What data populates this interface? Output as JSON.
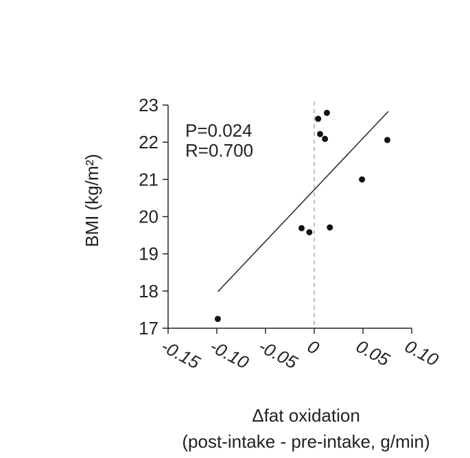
{
  "chart_data": {
    "type": "scatter",
    "x": [
      -0.099,
      -0.013,
      -0.005,
      0.016,
      0.004,
      0.013,
      0.006,
      0.011,
      0.049,
      0.075
    ],
    "y": [
      17.25,
      19.69,
      19.58,
      19.71,
      22.63,
      22.79,
      22.22,
      22.09,
      21.0,
      22.06
    ],
    "color": "#111111",
    "trend_line": {
      "x": [
        -0.099,
        0.076
      ],
      "y": [
        17.98,
        22.83
      ]
    },
    "vline": 0,
    "annotations": [
      "P=0.024",
      "R=0.700"
    ],
    "ylabel": "BMI (kg/m²)",
    "xlabel": [
      "Δfat oxidation",
      "(post-intake - pre-intake, g/min)"
    ],
    "xlim": [
      -0.15,
      0.1
    ],
    "xticks": [
      -0.15,
      {
        "value": -0.1,
        "label": "-0.10"
      },
      -0.05,
      0,
      0.05,
      {
        "value": 0.1,
        "label": "0.10"
      }
    ],
    "ylim": [
      17,
      23
    ],
    "yticks": [
      17,
      18,
      19,
      20,
      21,
      22,
      23
    ]
  }
}
